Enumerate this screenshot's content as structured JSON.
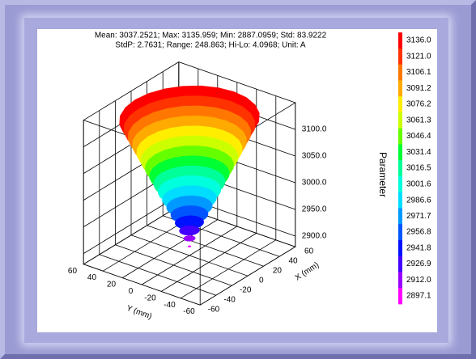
{
  "chart_data": {
    "type": "surface",
    "stats": [
      "Mean: 3037.2521; Max: 3135.959; Min: 2887.0959; Std: 83.9222",
      "StdP: 2.7631; Range: 248.863; Hi-Lo: 4.0968; Unit: A"
    ],
    "xlabel": "X (mm)",
    "ylabel": "Y (mm)",
    "zlabel": "Parameter",
    "xlim": [
      -60,
      60
    ],
    "xticks": [
      -60,
      -40,
      -20,
      0,
      20,
      40,
      60
    ],
    "ylim": [
      -60,
      60
    ],
    "yticks": [
      -60,
      -40,
      -20,
      0,
      20,
      40,
      60
    ],
    "zlim": [
      2880,
      3150
    ],
    "zticks": [
      {
        "value": 2900,
        "label": "2900.0"
      },
      {
        "value": 2950,
        "label": "2950.0"
      },
      {
        "value": 3000,
        "label": "3000.0"
      },
      {
        "value": 3050,
        "label": "3050.0"
      },
      {
        "value": 3100,
        "label": "3100.0"
      }
    ],
    "grid": true,
    "colorbar": {
      "levels": [
        {
          "value": 3136,
          "label": "3136.0"
        },
        {
          "value": 3121,
          "label": "3121.0"
        },
        {
          "value": 3106.1,
          "label": "3106.1"
        },
        {
          "value": 3091.2,
          "label": "3091.2"
        },
        {
          "value": 3076.2,
          "label": "3076.2"
        },
        {
          "value": 3061.3,
          "label": "3061.3"
        },
        {
          "value": 3046.4,
          "label": "3046.4"
        },
        {
          "value": 3031.4,
          "label": "3031.4"
        },
        {
          "value": 3016.5,
          "label": "3016.5"
        },
        {
          "value": 3001.6,
          "label": "3001.6"
        },
        {
          "value": 2986.6,
          "label": "2986.6"
        },
        {
          "value": 2971.7,
          "label": "2971.7"
        },
        {
          "value": 2956.8,
          "label": "2956.8"
        },
        {
          "value": 2941.8,
          "label": "2941.8"
        },
        {
          "value": 2926.9,
          "label": "2926.9"
        },
        {
          "value": 2912,
          "label": "2912.0"
        },
        {
          "value": 2897.1,
          "label": "2897.1"
        }
      ],
      "colors": [
        "#ff0000",
        "#ff3300",
        "#ff7700",
        "#ffaa00",
        "#ffee00",
        "#ccff00",
        "#66ff00",
        "#00ff33",
        "#00ff99",
        "#00ffdd",
        "#00ddff",
        "#0099ff",
        "#0055ff",
        "#0011ff",
        "#4400ff",
        "#9900ff",
        "#ff00ff"
      ]
    }
  }
}
